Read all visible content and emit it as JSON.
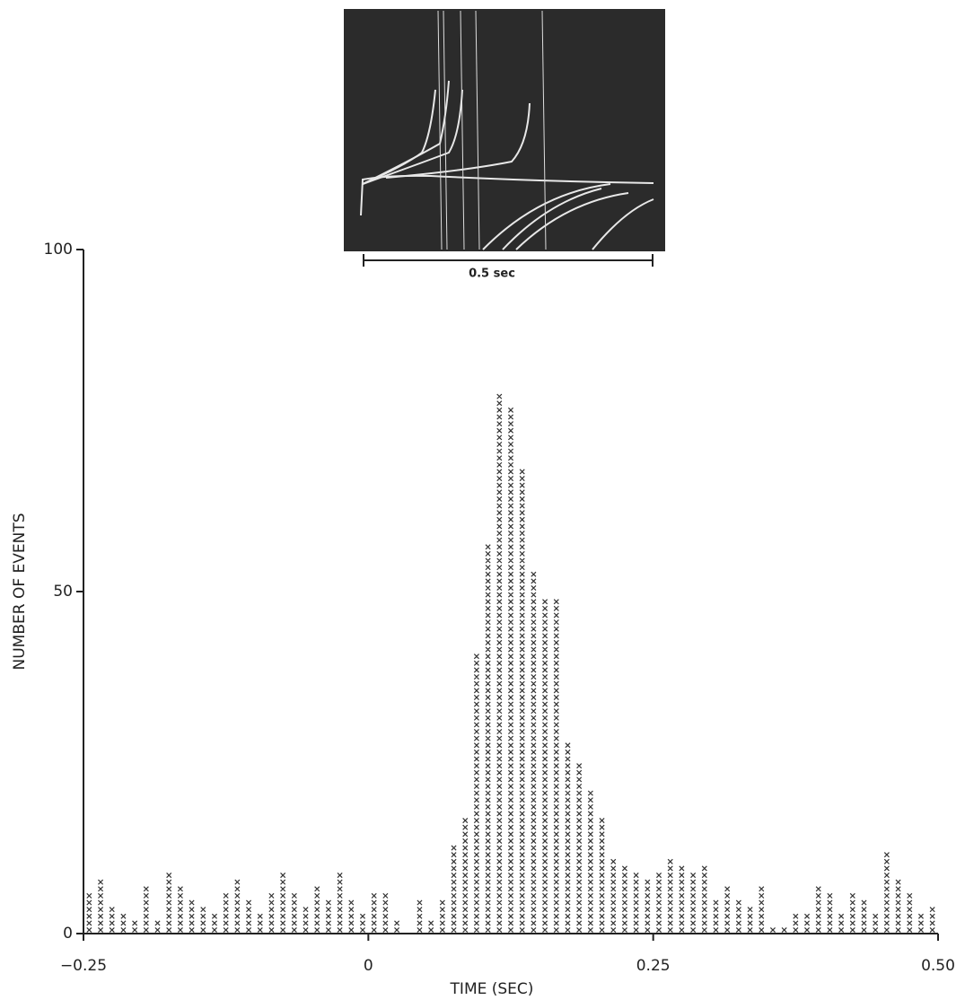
{
  "chart_data": {
    "type": "histogram",
    "xlabel": "TIME (SEC)",
    "ylabel": "NUMBER OF EVENTS",
    "annotations": [
      "0.5 sec"
    ],
    "bins": [
      -0.25,
      -0.24,
      -0.23,
      -0.22,
      -0.21,
      -0.2,
      -0.19,
      -0.18,
      -0.17,
      -0.16,
      -0.15,
      -0.14,
      -0.13,
      -0.12,
      -0.11,
      -0.1,
      -0.09,
      -0.08,
      -0.07,
      -0.06,
      -0.05,
      -0.04,
      -0.03,
      -0.02,
      -0.01,
      0,
      0.01,
      0.02,
      0.03,
      0.04,
      0.05,
      0.06,
      0.07,
      0.08,
      0.09,
      0.1,
      0.11,
      0.12,
      0.13,
      0.14,
      0.15,
      0.16,
      0.17,
      0.18,
      0.19,
      0.2,
      0.21,
      0.22,
      0.23,
      0.24,
      0.25,
      0.26,
      0.27,
      0.28,
      0.29,
      0.3,
      0.31,
      0.32,
      0.33,
      0.34,
      0.35,
      0.36,
      0.37,
      0.38,
      0.39,
      0.4,
      0.41,
      0.42,
      0.43,
      0.44,
      0.45,
      0.46,
      0.47,
      0.48,
      0.49,
      0.5
    ],
    "values": [
      6,
      8,
      4,
      3,
      2,
      7,
      2,
      9,
      7,
      5,
      4,
      3,
      6,
      8,
      5,
      3,
      6,
      9,
      6,
      4,
      7,
      5,
      9,
      5,
      3,
      6,
      6,
      2,
      0,
      5,
      2,
      5,
      13,
      17,
      41,
      57,
      79,
      77,
      68,
      53,
      49,
      49,
      28,
      25,
      21,
      17,
      11,
      10,
      9,
      8,
      9,
      11,
      10,
      9,
      10,
      5,
      7,
      5,
      4,
      7,
      1,
      1,
      3,
      3,
      7,
      6,
      3,
      6,
      5,
      3,
      12,
      8,
      6,
      3,
      4
    ],
    "color": "#333333",
    "xlim": [
      -0.25,
      0.5
    ],
    "ylim": [
      0,
      100
    ],
    "xticks": [
      {
        "value": -0.25,
        "label": "−0.25"
      },
      0,
      0.25,
      {
        "value": 0.5,
        "label": "0.50"
      }
    ],
    "yticks": [
      0,
      50,
      100
    ]
  }
}
